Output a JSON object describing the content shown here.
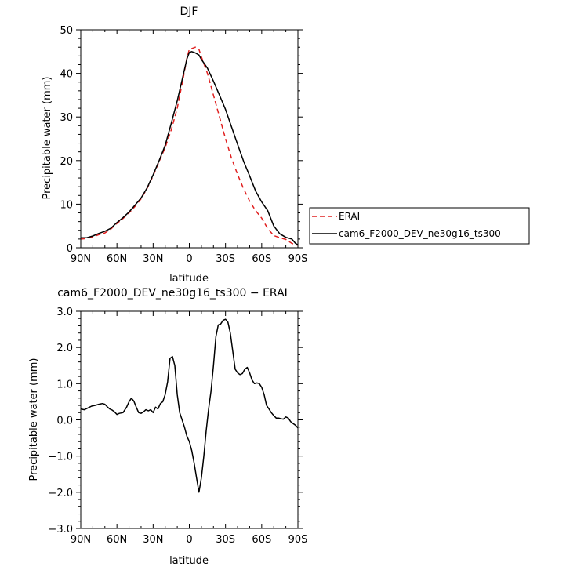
{
  "chart_data": [
    {
      "type": "line",
      "title": "DJF",
      "xlabel": "latitude",
      "ylabel": "Precipitable water (mm)",
      "xlim": [
        -90,
        90
      ],
      "ylim": [
        0,
        50
      ],
      "xticks": [
        -90,
        -60,
        -30,
        0,
        30,
        60,
        90
      ],
      "xtick_labels": [
        "90N",
        "60N",
        "30N",
        "0",
        "30S",
        "60S",
        "90S"
      ],
      "yticks": [
        0,
        10,
        20,
        30,
        40,
        50
      ],
      "ytick_labels": [
        "0",
        "10",
        "20",
        "30",
        "40",
        "50"
      ],
      "legend_position": "right",
      "series": [
        {
          "name": "ERAI",
          "color": "#e02020",
          "dash": "dashed",
          "x": [
            -90,
            -85,
            -80,
            -75,
            -70,
            -65,
            -60,
            -55,
            -50,
            -45,
            -40,
            -35,
            -30,
            -25,
            -20,
            -15,
            -10,
            -5,
            -2,
            0,
            2,
            5,
            8,
            10,
            15,
            20,
            25,
            30,
            35,
            40,
            45,
            50,
            55,
            60,
            65,
            70,
            75,
            80,
            85,
            88,
            90
          ],
          "y": [
            2.0,
            2.1,
            2.5,
            3.0,
            3.4,
            4.3,
            5.6,
            6.7,
            8.0,
            9.5,
            11.2,
            13.6,
            16.5,
            19.8,
            23.0,
            27.0,
            32.0,
            39.0,
            43.5,
            45.5,
            45.7,
            46.0,
            45.5,
            43.8,
            40.0,
            35.0,
            30.0,
            25.0,
            20.5,
            16.8,
            13.5,
            10.7,
            8.5,
            6.8,
            4.4,
            2.8,
            2.3,
            1.9,
            1.0,
            0.7,
            0.6
          ]
        },
        {
          "name": "cam6_F2000_DEV_ne30g16_ts300",
          "color": "#000000",
          "dash": "solid",
          "x": [
            -90,
            -85,
            -80,
            -75,
            -70,
            -65,
            -60,
            -55,
            -50,
            -45,
            -40,
            -35,
            -30,
            -25,
            -20,
            -15,
            -10,
            -5,
            -2,
            0,
            2,
            5,
            8,
            10,
            15,
            20,
            25,
            30,
            35,
            40,
            45,
            50,
            55,
            60,
            65,
            70,
            75,
            80,
            85,
            88,
            90
          ],
          "y": [
            2.3,
            2.3,
            2.7,
            3.3,
            3.8,
            4.5,
            5.8,
            6.9,
            8.2,
            9.8,
            11.4,
            13.7,
            16.7,
            20.0,
            23.5,
            28.5,
            33.7,
            39.7,
            43.3,
            44.8,
            45.0,
            44.7,
            44.2,
            43.2,
            41.2,
            38.2,
            35.0,
            31.7,
            27.7,
            23.7,
            19.8,
            16.5,
            13.0,
            10.5,
            8.5,
            5.0,
            3.2,
            2.4,
            2.0,
            1.0,
            0.7
          ]
        }
      ]
    },
    {
      "type": "line",
      "title": "cam6_F2000_DEV_ne30g16_ts300 − ERAI",
      "xlabel": "latitude",
      "ylabel": "Precipitable water (mm)",
      "xlim": [
        -90,
        90
      ],
      "ylim": [
        -3,
        3
      ],
      "xticks": [
        -90,
        -60,
        -30,
        0,
        30,
        60,
        90
      ],
      "xtick_labels": [
        "90N",
        "60N",
        "30N",
        "0",
        "30S",
        "60S",
        "90S"
      ],
      "yticks": [
        -3,
        -2,
        -1,
        0,
        1,
        2,
        3
      ],
      "ytick_labels": [
        "−3.0",
        "−2.0",
        "−1.0",
        "0.0",
        "1.0",
        "2.0",
        "3.0"
      ],
      "series": [
        {
          "color": "#000000",
          "dash": "solid",
          "x": [
            -90,
            -87,
            -84,
            -81,
            -78,
            -75,
            -72,
            -70,
            -68,
            -66,
            -64,
            -62,
            -60,
            -58,
            -55,
            -52,
            -50,
            -48,
            -46,
            -44,
            -42,
            -40,
            -38,
            -36,
            -34,
            -32,
            -30,
            -28,
            -26,
            -24,
            -22,
            -20,
            -18,
            -16,
            -14,
            -12,
            -10,
            -8,
            -6,
            -4,
            -2,
            0,
            2,
            4,
            6,
            8,
            10,
            12,
            14,
            16,
            18,
            20,
            22,
            24,
            26,
            28,
            30,
            32,
            34,
            36,
            38,
            40,
            42,
            44,
            46,
            48,
            50,
            52,
            54,
            56,
            58,
            60,
            62,
            64,
            66,
            68,
            70,
            72,
            74,
            76,
            78,
            80,
            82,
            84,
            86,
            88,
            90
          ],
          "y": [
            0.3,
            0.28,
            0.33,
            0.38,
            0.4,
            0.43,
            0.45,
            0.43,
            0.36,
            0.3,
            0.27,
            0.22,
            0.15,
            0.18,
            0.2,
            0.35,
            0.5,
            0.6,
            0.52,
            0.35,
            0.2,
            0.18,
            0.22,
            0.28,
            0.25,
            0.28,
            0.2,
            0.35,
            0.3,
            0.45,
            0.5,
            0.7,
            1.05,
            1.7,
            1.75,
            1.5,
            0.7,
            0.2,
            0.0,
            -0.2,
            -0.45,
            -0.6,
            -0.85,
            -1.2,
            -1.6,
            -2.0,
            -1.6,
            -1.0,
            -0.3,
            0.3,
            0.8,
            1.5,
            2.3,
            2.62,
            2.65,
            2.75,
            2.78,
            2.7,
            2.4,
            1.9,
            1.4,
            1.3,
            1.25,
            1.28,
            1.4,
            1.45,
            1.3,
            1.1,
            1.0,
            1.02,
            1.0,
            0.9,
            0.7,
            0.4,
            0.3,
            0.2,
            0.12,
            0.05,
            0.05,
            0.03,
            0.02,
            0.08,
            0.05,
            -0.05,
            -0.1,
            -0.15,
            -0.22
          ]
        }
      ]
    }
  ]
}
